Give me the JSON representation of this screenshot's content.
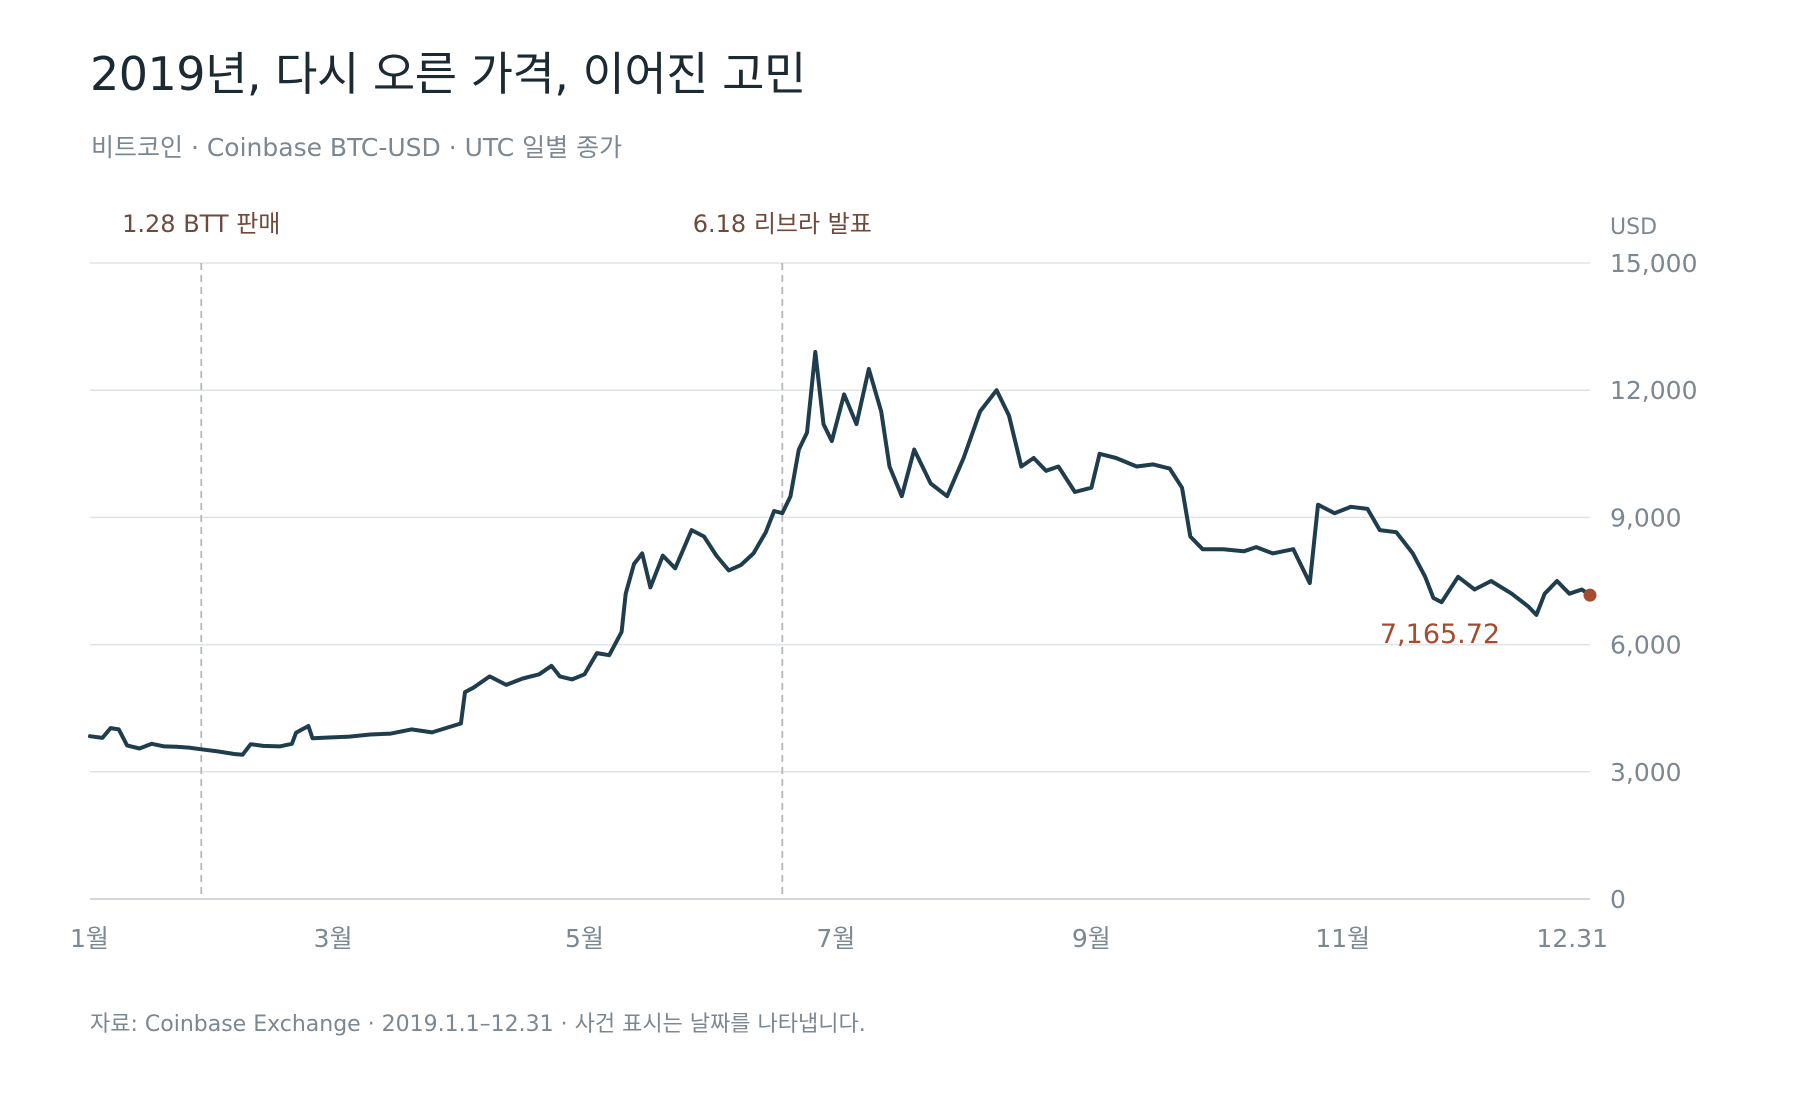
{
  "header": {
    "title": "2019년, 다시 오른 가격, 이어진 고민",
    "subtitle": "비트코인 · Coinbase BTC-USD · UTC 일별 종가"
  },
  "footer": {
    "source": "자료: Coinbase Exchange · 2019.1.1–12.31 · 사건 표시는 날짜를 나타냅니다."
  },
  "colors": {
    "line": "#1f3d4c",
    "accent": "#a64b2f",
    "event_label": "#6e4a3c",
    "muted_text": "#7b8791",
    "grid": "#e0e3e6"
  },
  "chart_data": {
    "type": "line",
    "title": "2019년, 다시 오른 가격, 이어진 고민",
    "subtitle": "비트코인 · Coinbase BTC-USD · UTC 일별 종가",
    "ylabel": "USD",
    "xlabel": "",
    "x_range": [
      "2019-01-01",
      "2019-12-31"
    ],
    "ylim": [
      0,
      15000
    ],
    "y_ticks": [
      0,
      3000,
      6000,
      9000,
      12000,
      15000
    ],
    "y_tick_labels": [
      "0",
      "3,000",
      "6,000",
      "9,000",
      "12,000",
      "15,000"
    ],
    "x_ticks": [
      {
        "date": "2019-01-01",
        "label": "1월"
      },
      {
        "date": "2019-03-01",
        "label": "3월"
      },
      {
        "date": "2019-05-01",
        "label": "5월"
      },
      {
        "date": "2019-07-01",
        "label": "7월"
      },
      {
        "date": "2019-09-01",
        "label": "9월"
      },
      {
        "date": "2019-11-01",
        "label": "11월"
      },
      {
        "date": "2019-12-31",
        "label": "12.31"
      }
    ],
    "grid": true,
    "events": [
      {
        "date": "2019-01-28",
        "label": "1.28 BTT 판매"
      },
      {
        "date": "2019-06-18",
        "label": "6.18 리브라 발표"
      }
    ],
    "last_value": {
      "date": "2019-12-31",
      "value": 7165.72,
      "label": "7,165.72"
    },
    "series": [
      {
        "name": "",
        "points": [
          [
            "2019-01-01",
            3840
          ],
          [
            "2019-01-04",
            3800
          ],
          [
            "2019-01-06",
            4030
          ],
          [
            "2019-01-08",
            4000
          ],
          [
            "2019-01-10",
            3620
          ],
          [
            "2019-01-13",
            3550
          ],
          [
            "2019-01-16",
            3660
          ],
          [
            "2019-01-19",
            3600
          ],
          [
            "2019-01-22",
            3590
          ],
          [
            "2019-01-25",
            3570
          ],
          [
            "2019-01-28",
            3530
          ],
          [
            "2019-02-01",
            3480
          ],
          [
            "2019-02-05",
            3420
          ],
          [
            "2019-02-07",
            3400
          ],
          [
            "2019-02-09",
            3650
          ],
          [
            "2019-02-12",
            3610
          ],
          [
            "2019-02-16",
            3600
          ],
          [
            "2019-02-19",
            3660
          ],
          [
            "2019-02-20",
            3920
          ],
          [
            "2019-02-23",
            4080
          ],
          [
            "2019-02-24",
            3790
          ],
          [
            "2019-02-28",
            3810
          ],
          [
            "2019-03-05",
            3830
          ],
          [
            "2019-03-10",
            3880
          ],
          [
            "2019-03-15",
            3900
          ],
          [
            "2019-03-20",
            4000
          ],
          [
            "2019-03-25",
            3930
          ],
          [
            "2019-03-30",
            4080
          ],
          [
            "2019-04-01",
            4140
          ],
          [
            "2019-04-02",
            4880
          ],
          [
            "2019-04-04",
            4980
          ],
          [
            "2019-04-08",
            5250
          ],
          [
            "2019-04-12",
            5050
          ],
          [
            "2019-04-16",
            5200
          ],
          [
            "2019-04-20",
            5300
          ],
          [
            "2019-04-23",
            5500
          ],
          [
            "2019-04-25",
            5250
          ],
          [
            "2019-04-28",
            5180
          ],
          [
            "2019-05-01",
            5300
          ],
          [
            "2019-05-04",
            5800
          ],
          [
            "2019-05-07",
            5750
          ],
          [
            "2019-05-10",
            6300
          ],
          [
            "2019-05-11",
            7200
          ],
          [
            "2019-05-13",
            7900
          ],
          [
            "2019-05-15",
            8150
          ],
          [
            "2019-05-17",
            7350
          ],
          [
            "2019-05-20",
            8100
          ],
          [
            "2019-05-23",
            7800
          ],
          [
            "2019-05-27",
            8700
          ],
          [
            "2019-05-30",
            8550
          ],
          [
            "2019-06-02",
            8100
          ],
          [
            "2019-06-05",
            7750
          ],
          [
            "2019-06-08",
            7880
          ],
          [
            "2019-06-11",
            8150
          ],
          [
            "2019-06-14",
            8650
          ],
          [
            "2019-06-16",
            9150
          ],
          [
            "2019-06-18",
            9100
          ],
          [
            "2019-06-20",
            9500
          ],
          [
            "2019-06-22",
            10600
          ],
          [
            "2019-06-24",
            11000
          ],
          [
            "2019-06-26",
            12900
          ],
          [
            "2019-06-28",
            11200
          ],
          [
            "2019-06-30",
            10800
          ],
          [
            "2019-07-03",
            11900
          ],
          [
            "2019-07-06",
            11200
          ],
          [
            "2019-07-09",
            12500
          ],
          [
            "2019-07-12",
            11500
          ],
          [
            "2019-07-14",
            10200
          ],
          [
            "2019-07-17",
            9500
          ],
          [
            "2019-07-20",
            10600
          ],
          [
            "2019-07-24",
            9800
          ],
          [
            "2019-07-28",
            9500
          ],
          [
            "2019-08-01",
            10400
          ],
          [
            "2019-08-05",
            11500
          ],
          [
            "2019-08-09",
            12000
          ],
          [
            "2019-08-12",
            11400
          ],
          [
            "2019-08-15",
            10200
          ],
          [
            "2019-08-18",
            10400
          ],
          [
            "2019-08-21",
            10100
          ],
          [
            "2019-08-24",
            10200
          ],
          [
            "2019-08-28",
            9600
          ],
          [
            "2019-09-01",
            9700
          ],
          [
            "2019-09-03",
            10500
          ],
          [
            "2019-09-07",
            10400
          ],
          [
            "2019-09-12",
            10200
          ],
          [
            "2019-09-16",
            10250
          ],
          [
            "2019-09-20",
            10150
          ],
          [
            "2019-09-23",
            9700
          ],
          [
            "2019-09-25",
            8550
          ],
          [
            "2019-09-28",
            8250
          ],
          [
            "2019-10-03",
            8250
          ],
          [
            "2019-10-08",
            8200
          ],
          [
            "2019-10-11",
            8300
          ],
          [
            "2019-10-15",
            8150
          ],
          [
            "2019-10-20",
            8250
          ],
          [
            "2019-10-24",
            7450
          ],
          [
            "2019-10-26",
            9300
          ],
          [
            "2019-10-30",
            9100
          ],
          [
            "2019-11-03",
            9250
          ],
          [
            "2019-11-07",
            9200
          ],
          [
            "2019-11-10",
            8700
          ],
          [
            "2019-11-14",
            8650
          ],
          [
            "2019-11-18",
            8150
          ],
          [
            "2019-11-21",
            7600
          ],
          [
            "2019-11-23",
            7100
          ],
          [
            "2019-11-25",
            7000
          ],
          [
            "2019-11-29",
            7600
          ],
          [
            "2019-12-03",
            7300
          ],
          [
            "2019-12-07",
            7500
          ],
          [
            "2019-12-12",
            7200
          ],
          [
            "2019-12-16",
            6900
          ],
          [
            "2019-12-18",
            6700
          ],
          [
            "2019-12-20",
            7200
          ],
          [
            "2019-12-23",
            7500
          ],
          [
            "2019-12-26",
            7200
          ],
          [
            "2019-12-29",
            7300
          ],
          [
            "2019-12-31",
            7165.72
          ]
        ]
      }
    ]
  }
}
